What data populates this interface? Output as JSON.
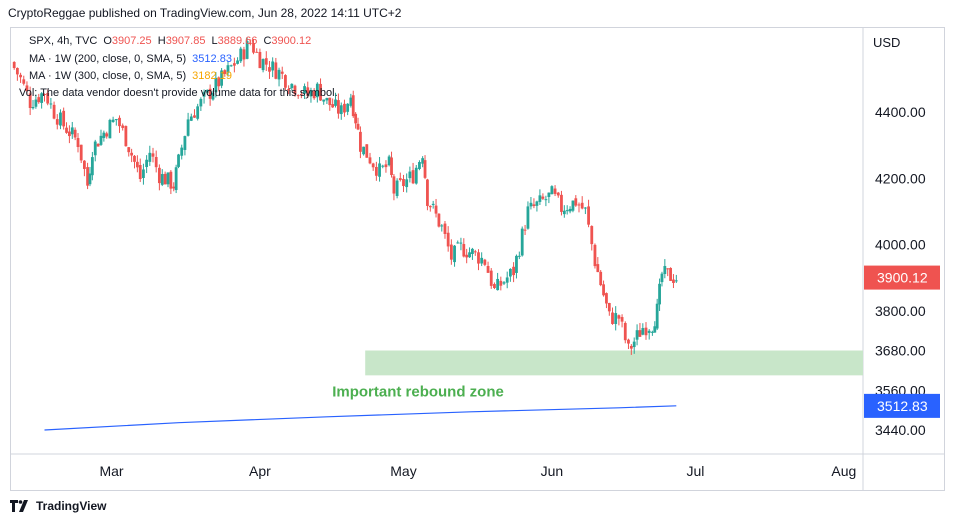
{
  "header": {
    "text": "CryptoReggae published on TradingView.com, Jun 28, 2022 14:11 UTC+2"
  },
  "legend": {
    "symbol_line": {
      "symbol": "SPX, 4h, TVC",
      "o_label": "O",
      "o_value": "3907.25",
      "h_label": "H",
      "h_value": "3907.85",
      "l_label": "L",
      "l_value": "3889.66",
      "c_label": "C",
      "c_value": "3900.12"
    },
    "ma200": {
      "label": "MA · 1W (200, close, 0, SMA, 5)",
      "value": "3512.83"
    },
    "ma300": {
      "label": "MA · 1W (300, close, 0, SMA, 5)",
      "value": "3182.19"
    },
    "vol": {
      "text": "Vol: The data vendor doesn't provide volume data for this symbol."
    }
  },
  "footer": {
    "brand": "TradingView"
  },
  "colors": {
    "up": "#26a69a",
    "down": "#ef5350",
    "ma200": "#2962ff",
    "ma300": "#f7a600",
    "zone_fill": "#c8e6c9",
    "zone_text": "#4caf50",
    "axis_text": "#131722",
    "price_label_bg": "#ef5350",
    "ma_label_bg": "#2962ff"
  },
  "chart_data": {
    "type": "candlestick",
    "currency": "USD",
    "y_ticks": [
      "4400.00",
      "4200.00",
      "4000.00",
      "3800.00",
      "3680.00",
      "3560.00",
      "3440.00"
    ],
    "y_tick_values": [
      4400,
      4200,
      4000,
      3800,
      3680,
      3560,
      3440
    ],
    "x_ticks": [
      "Mar",
      "Apr",
      "May",
      "Jun",
      "Jul",
      "Aug"
    ],
    "x_tick_dates": [
      "2022-03-01",
      "2022-04-01",
      "2022-05-01",
      "2022-06-01",
      "2022-07-01",
      "2022-08-01"
    ],
    "x_range": [
      "2022-02-08",
      "2022-08-05"
    ],
    "price_label": "3900.12",
    "ma_label": "3512.83",
    "annotation": {
      "text": "Important rebound zone",
      "zone_low": 3605,
      "zone_high": 3680,
      "zone_start": "2022-04-23",
      "zone_end": "2022-08-05"
    },
    "close_path": [
      {
        "d": "2022-02-08",
        "c": 4550
      },
      {
        "d": "2022-02-10",
        "c": 4500
      },
      {
        "d": "2022-02-12",
        "c": 4430
      },
      {
        "d": "2022-02-15",
        "c": 4460
      },
      {
        "d": "2022-02-17",
        "c": 4400
      },
      {
        "d": "2022-02-19",
        "c": 4360
      },
      {
        "d": "2022-02-22",
        "c": 4310
      },
      {
        "d": "2022-02-24",
        "c": 4180
      },
      {
        "d": "2022-02-25",
        "c": 4290
      },
      {
        "d": "2022-02-28",
        "c": 4350
      },
      {
        "d": "2022-03-02",
        "c": 4380
      },
      {
        "d": "2022-03-04",
        "c": 4320
      },
      {
        "d": "2022-03-07",
        "c": 4200
      },
      {
        "d": "2022-03-09",
        "c": 4280
      },
      {
        "d": "2022-03-11",
        "c": 4210
      },
      {
        "d": "2022-03-14",
        "c": 4180
      },
      {
        "d": "2022-03-15",
        "c": 4250
      },
      {
        "d": "2022-03-17",
        "c": 4380
      },
      {
        "d": "2022-03-21",
        "c": 4450
      },
      {
        "d": "2022-03-24",
        "c": 4500
      },
      {
        "d": "2022-03-28",
        "c": 4570
      },
      {
        "d": "2022-03-30",
        "c": 4610
      },
      {
        "d": "2022-04-01",
        "c": 4560
      },
      {
        "d": "2022-04-05",
        "c": 4520
      },
      {
        "d": "2022-04-07",
        "c": 4490
      },
      {
        "d": "2022-04-11",
        "c": 4450
      },
      {
        "d": "2022-04-13",
        "c": 4470
      },
      {
        "d": "2022-04-15",
        "c": 4430
      },
      {
        "d": "2022-04-18",
        "c": 4400
      },
      {
        "d": "2022-04-20",
        "c": 4450
      },
      {
        "d": "2022-04-21",
        "c": 4380
      },
      {
        "d": "2022-04-22",
        "c": 4300
      },
      {
        "d": "2022-04-26",
        "c": 4220
      },
      {
        "d": "2022-04-28",
        "c": 4240
      },
      {
        "d": "2022-04-29",
        "c": 4160
      },
      {
        "d": "2022-05-03",
        "c": 4210
      },
      {
        "d": "2022-05-05",
        "c": 4280
      },
      {
        "d": "2022-05-06",
        "c": 4140
      },
      {
        "d": "2022-05-09",
        "c": 4050
      },
      {
        "d": "2022-05-11",
        "c": 3960
      },
      {
        "d": "2022-05-13",
        "c": 3990
      },
      {
        "d": "2022-05-16",
        "c": 3970
      },
      {
        "d": "2022-05-18",
        "c": 3950
      },
      {
        "d": "2022-05-20",
        "c": 3860
      },
      {
        "d": "2022-05-24",
        "c": 3920
      },
      {
        "d": "2022-05-27",
        "c": 4100
      },
      {
        "d": "2022-06-01",
        "c": 4150
      },
      {
        "d": "2022-06-03",
        "c": 4110
      },
      {
        "d": "2022-06-06",
        "c": 4130
      },
      {
        "d": "2022-06-08",
        "c": 4100
      },
      {
        "d": "2022-06-10",
        "c": 3950
      },
      {
        "d": "2022-06-13",
        "c": 3780
      },
      {
        "d": "2022-06-15",
        "c": 3780
      },
      {
        "d": "2022-06-17",
        "c": 3680
      },
      {
        "d": "2022-06-20",
        "c": 3750
      },
      {
        "d": "2022-06-22",
        "c": 3760
      },
      {
        "d": "2022-06-23",
        "c": 3800
      },
      {
        "d": "2022-06-24",
        "c": 3910
      },
      {
        "d": "2022-06-27",
        "c": 3900
      }
    ],
    "ma200_line": [
      {
        "d": "2022-02-15",
        "c": 3440
      },
      {
        "d": "2022-03-15",
        "c": 3462
      },
      {
        "d": "2022-04-15",
        "c": 3480
      },
      {
        "d": "2022-05-15",
        "c": 3495
      },
      {
        "d": "2022-06-15",
        "c": 3507
      },
      {
        "d": "2022-06-27",
        "c": 3513
      }
    ]
  }
}
